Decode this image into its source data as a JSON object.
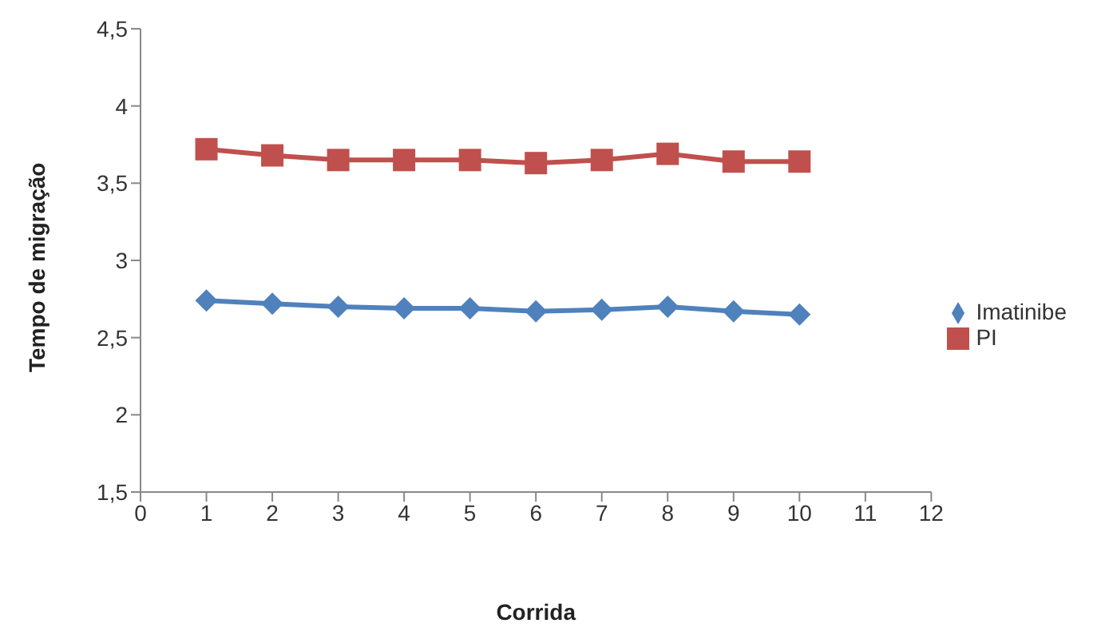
{
  "chart_data": {
    "type": "line",
    "xlabel": "Corrida",
    "ylabel": "Tempo de migração",
    "x": [
      1,
      2,
      3,
      4,
      5,
      6,
      7,
      8,
      9,
      10
    ],
    "series": [
      {
        "name": "Imatinibe",
        "color": "#4f81bd",
        "marker": "diamond",
        "values": [
          2.74,
          2.72,
          2.7,
          2.69,
          2.69,
          2.67,
          2.68,
          2.7,
          2.67,
          2.65
        ]
      },
      {
        "name": "PI",
        "color": "#c0504d",
        "marker": "square",
        "values": [
          3.72,
          3.68,
          3.65,
          3.65,
          3.65,
          3.63,
          3.65,
          3.69,
          3.64,
          3.64
        ]
      }
    ],
    "xlim": [
      0,
      12
    ],
    "xticks": [
      0,
      1,
      2,
      3,
      4,
      5,
      6,
      7,
      8,
      9,
      10,
      11,
      12
    ],
    "ylim": [
      1.5,
      4.5
    ],
    "yticks": [
      {
        "value": 1.5,
        "label": "1,5"
      },
      2,
      {
        "value": 2.5,
        "label": "2,5"
      },
      3,
      {
        "value": 3.5,
        "label": "3,5"
      },
      4,
      {
        "value": 4.5,
        "label": "4,5"
      }
    ],
    "grid": false,
    "legend": "right"
  }
}
